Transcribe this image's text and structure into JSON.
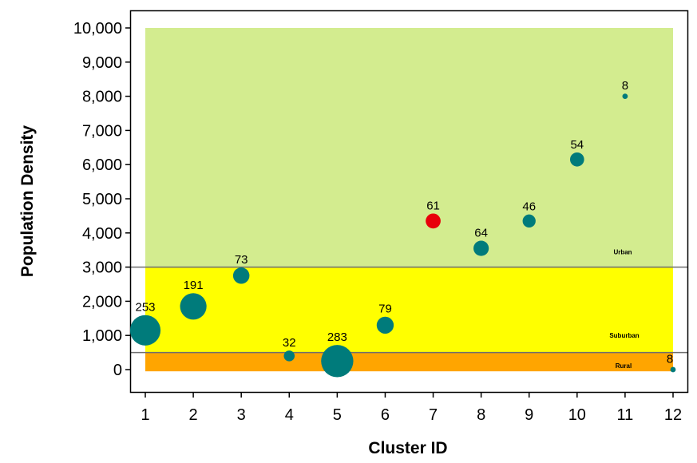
{
  "chart_data": {
    "type": "scatter",
    "subtype": "bubble",
    "title": "",
    "xlabel": "Cluster ID",
    "ylabel": "Population Density",
    "xlim": [
      0.7,
      12.2
    ],
    "ylim": [
      -500,
      10500
    ],
    "x_ticks": [
      1,
      2,
      3,
      4,
      5,
      6,
      7,
      8,
      9,
      10,
      11,
      12
    ],
    "y_ticks": [
      0,
      1000,
      2000,
      3000,
      4000,
      5000,
      6000,
      7000,
      8000,
      9000,
      10000
    ],
    "y_tick_labels": [
      "0",
      "1,000",
      "2,000",
      "3,000",
      "4,000",
      "5,000",
      "6,000",
      "7,000",
      "8,000",
      "9,000",
      "10,000"
    ],
    "grid": false,
    "bands": [
      {
        "label": "Rural",
        "y0": -50,
        "y1": 500,
        "color": "#ffa500"
      },
      {
        "label": "Suburban",
        "y0": 500,
        "y1": 3000,
        "color": "#ffff00"
      },
      {
        "label": "Urban",
        "y0": 3000,
        "y1": 10000,
        "color": "#d3ec8f"
      }
    ],
    "band_boundaries": [
      500,
      3000
    ],
    "points": [
      {
        "x": 1,
        "y": 1150,
        "size": 253,
        "label": "253",
        "color": "#007b7b"
      },
      {
        "x": 2,
        "y": 1850,
        "size": 191,
        "label": "191",
        "color": "#007b7b"
      },
      {
        "x": 3,
        "y": 2750,
        "size": 73,
        "label": "73",
        "color": "#007b7b"
      },
      {
        "x": 4,
        "y": 400,
        "size": 32,
        "label": "32",
        "color": "#007b7b"
      },
      {
        "x": 5,
        "y": 250,
        "size": 283,
        "label": "283",
        "color": "#007b7b"
      },
      {
        "x": 6,
        "y": 1300,
        "size": 79,
        "label": "79",
        "color": "#007b7b"
      },
      {
        "x": 7,
        "y": 4350,
        "size": 61,
        "label": "61",
        "color": "#e8000b"
      },
      {
        "x": 8,
        "y": 3550,
        "size": 64,
        "label": "64",
        "color": "#007b7b"
      },
      {
        "x": 9,
        "y": 4350,
        "size": 46,
        "label": "46",
        "color": "#007b7b"
      },
      {
        "x": 10,
        "y": 6150,
        "size": 54,
        "label": "54",
        "color": "#007b7b"
      },
      {
        "x": 11,
        "y": 8000,
        "size": 8,
        "label": "8",
        "color": "#007b7b"
      },
      {
        "x": 12,
        "y": 0,
        "size": 8,
        "label": "8",
        "color": "#007b7b"
      }
    ]
  }
}
